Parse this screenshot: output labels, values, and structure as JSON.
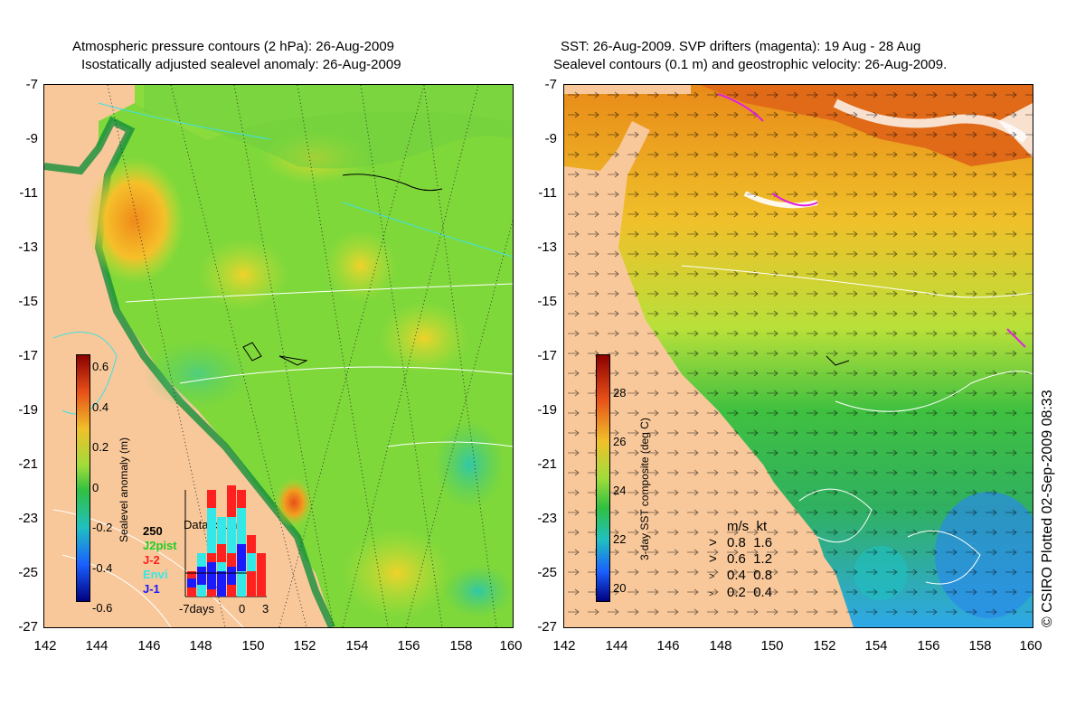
{
  "left_panel": {
    "title_line1": "Atmospheric pressure contours (2 hPa): 26-Aug-2009",
    "title_line2": "Isostatically adjusted sealevel anomaly: 26-Aug-2009",
    "colorbar_label": "Sealevel anomaly (m)",
    "colorbar_ticks": [
      "0.6",
      "0.4",
      "0.2",
      "0",
      "-0.2",
      "-0.4",
      "-0.6"
    ],
    "inset": {
      "title": "Data count",
      "y_tick": "250",
      "legend": [
        {
          "name": "J2pist",
          "color": "#22cc22"
        },
        {
          "name": "J-2",
          "color": "#ff2020"
        },
        {
          "name": "Envi",
          "color": "#33e8e8"
        },
        {
          "name": "J-1",
          "color": "#1a1aff"
        }
      ],
      "x_labels": [
        "-7days",
        "0",
        "3"
      ]
    }
  },
  "right_panel": {
    "title_line1": "SST: 26-Aug-2009. SVP drifters (magenta): 19 Aug - 28 Aug",
    "title_line2": "Sealevel contours (0.1 m) and geostrophic velocity: 26-Aug-2009.",
    "colorbar_label": "3-day SST composite (deg C)",
    "colorbar_ticks": [
      "28",
      "26",
      "24",
      "22",
      "20"
    ],
    "speed_legend": {
      "header_ms": "m/s",
      "header_kt": "kt",
      "rows": [
        {
          "ms": "0.8",
          "kt": "1.6"
        },
        {
          "ms": "0.6",
          "kt": "1.2"
        },
        {
          "ms": "0.4",
          "kt": "0.8"
        },
        {
          "ms": "0.2",
          "kt": "0.4"
        }
      ]
    }
  },
  "y_axis_labels": [
    "-7",
    "-9",
    "-11",
    "-13",
    "-15",
    "-17",
    "-19",
    "-21",
    "-23",
    "-25",
    "-27"
  ],
  "x_axis_labels": [
    "142",
    "144",
    "146",
    "148",
    "150",
    "152",
    "154",
    "156",
    "158",
    "160"
  ],
  "credit": "© CSIRO Plotted 02-Sep-2009 08:33",
  "colors": {
    "land": "#f8c89a",
    "sla_base": "#7fd83a",
    "sst_warm": "#f0a020",
    "sst_cool": "#2ea8e8"
  }
}
